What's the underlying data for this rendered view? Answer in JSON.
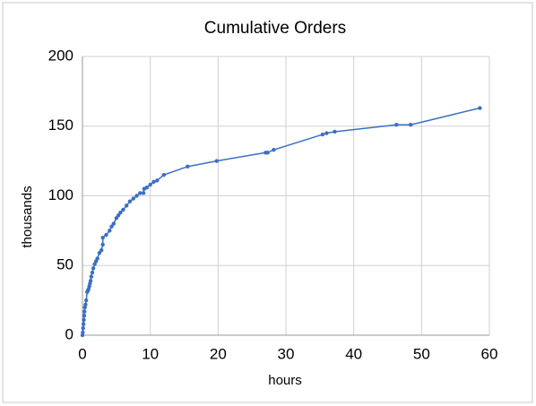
{
  "chart_data": {
    "type": "line",
    "title": "Cumulative Orders",
    "x_label": "hours",
    "y_label": "thousands",
    "x": [
      0,
      0.05,
      0.1,
      0.15,
      0.2,
      0.25,
      0.3,
      0.35,
      0.45,
      0.55,
      0.7,
      0.8,
      0.9,
      1.0,
      1.1,
      1.2,
      1.3,
      1.45,
      1.6,
      1.8,
      2.0,
      2.2,
      2.5,
      2.8,
      3.0,
      3.0,
      3.5,
      4.0,
      4.3,
      4.6,
      5.0,
      5.3,
      5.6,
      6.0,
      6.5,
      7.0,
      7.5,
      8.0,
      8.5,
      9.0,
      9.1,
      9.5,
      10,
      10.5,
      11,
      12,
      15.5,
      19.8,
      27,
      27.3,
      28.2,
      35.4,
      36,
      37.2,
      46.3,
      48.4,
      58.6
    ],
    "series": [
      {
        "name": "Cumulative Orders",
        "color": "#3a6fc4",
        "values": [
          0,
          2,
          5,
          8,
          11,
          14,
          17,
          20,
          22,
          25,
          31,
          32,
          33,
          35,
          37,
          39,
          42,
          45,
          48,
          51,
          53,
          55,
          59,
          61,
          65,
          70,
          72,
          75,
          78,
          80,
          84,
          86,
          88,
          90,
          93,
          96,
          98,
          100,
          102,
          102,
          105,
          106,
          108,
          110,
          111,
          115,
          121,
          125,
          131,
          131,
          133,
          144,
          145,
          146,
          151,
          151,
          163
        ]
      }
    ],
    "xlim": [
      0,
      60
    ],
    "xticks": [
      0,
      10,
      20,
      30,
      40,
      50,
      60
    ],
    "ylim": [
      0,
      200
    ],
    "yticks": [
      0,
      50,
      100,
      150,
      200
    ],
    "grid": true
  }
}
